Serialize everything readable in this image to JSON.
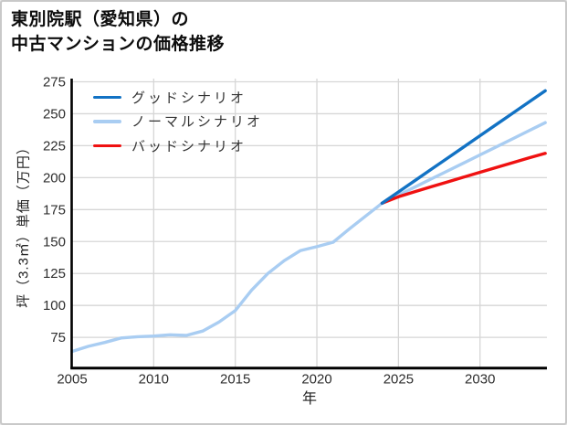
{
  "title": {
    "line1": "東別院駅（愛知県）の",
    "line2": "中古マンションの価格推移"
  },
  "chart_data": {
    "type": "line",
    "title": "東別院駅（愛知県）の中古マンションの価格推移",
    "xlabel": "年",
    "ylabel": "坪（3.3㎡）単価（万円）",
    "xlim": [
      2005,
      2034.1
    ],
    "ylim": [
      51.5,
      277.5
    ],
    "x_ticks": [
      2005,
      2010,
      2015,
      2020,
      2025,
      2030
    ],
    "y_ticks": [
      75,
      100,
      125,
      150,
      175,
      200,
      225,
      250,
      275
    ],
    "grid": true,
    "legend_position": "top-left",
    "colors": {
      "grid": "#d6d6d6",
      "axis": "#000000",
      "tick_text": "#2e2e2e"
    },
    "series": [
      {
        "name": "グッドシナリオ",
        "color": "#1272c4",
        "x": [
          2024,
          2025,
          2026,
          2027,
          2028,
          2029,
          2030,
          2031,
          2032,
          2033,
          2034
        ],
        "values": [
          180,
          188.8,
          197.6,
          206.4,
          215.2,
          224,
          232.8,
          241.6,
          250.4,
          259.2,
          268
        ]
      },
      {
        "name": "ノーマルシナリオ",
        "color": "#a9cdf2",
        "x": [
          2005,
          2006,
          2007,
          2008,
          2009,
          2010,
          2011,
          2012,
          2013,
          2014,
          2015,
          2016,
          2017,
          2018,
          2019,
          2020,
          2021,
          2022,
          2023,
          2024,
          2025,
          2026,
          2027,
          2028,
          2029,
          2030,
          2031,
          2032,
          2033,
          2034
        ],
        "values": [
          64,
          68,
          71,
          74.5,
          75.5,
          76,
          77,
          76.5,
          80,
          87,
          96,
          112,
          125,
          135,
          143,
          146,
          149.5,
          160,
          170,
          180,
          186.3,
          192.6,
          198.9,
          205.2,
          211.5,
          217.8,
          224.1,
          230.4,
          236.7,
          243
        ]
      },
      {
        "name": "バッドシナリオ",
        "color": "#ef1111",
        "x": [
          2024,
          2025,
          2026,
          2027,
          2028,
          2029,
          2030,
          2031,
          2032,
          2033,
          2034
        ],
        "values": [
          180,
          185,
          189,
          192.8,
          196.6,
          200.4,
          204.2,
          208,
          211.7,
          215.4,
          219
        ]
      }
    ]
  }
}
